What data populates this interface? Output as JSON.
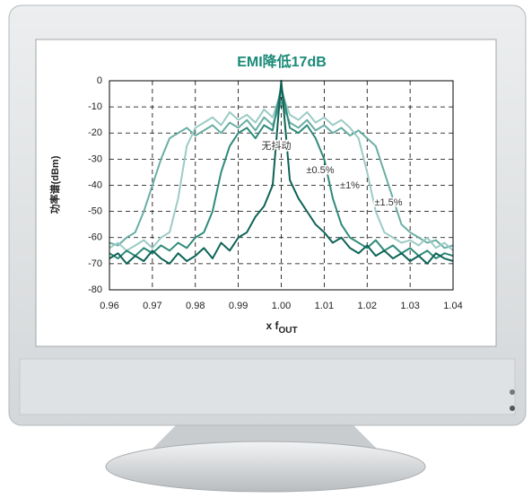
{
  "chart_data": {
    "type": "line",
    "title": "EMI降低17dB",
    "ylabel": "功率谱(dBm)",
    "xlabel": [
      "x f",
      "OUT"
    ],
    "xlim": [
      0.96,
      1.04
    ],
    "xticks": [
      0.96,
      0.97,
      0.98,
      0.99,
      {
        "value": 1,
        "label": "1.00"
      },
      1.01,
      1.02,
      1.03,
      1.04
    ],
    "ylim": [
      -80,
      0
    ],
    "yticks": [
      -80,
      -70,
      -60,
      -50,
      -40,
      -30,
      -20,
      -10,
      0
    ],
    "grid": true,
    "annotations": [
      "无抖动",
      "±0.5%",
      "±1%",
      "±1.5%"
    ],
    "x": [
      0.96,
      0.962,
      0.964,
      0.966,
      0.968,
      0.97,
      0.972,
      0.974,
      0.976,
      0.978,
      0.98,
      0.982,
      0.984,
      0.986,
      0.988,
      0.99,
      0.992,
      0.994,
      0.996,
      0.998,
      1,
      1.002,
      1.004,
      1.006,
      1.008,
      1.01,
      1.012,
      1.014,
      1.016,
      1.018,
      1.02,
      1.022,
      1.024,
      1.026,
      1.028,
      1.03,
      1.032,
      1.034,
      1.036,
      1.038,
      1.04
    ],
    "series": [
      {
        "color": "#6aaea4",
        "values": [
          -62,
          -63,
          -60,
          -58,
          -50,
          -40,
          -30,
          -22,
          -20,
          -18,
          -21,
          -19,
          -17,
          -20,
          -16,
          -18,
          -15,
          -19,
          -14,
          -17,
          -8,
          -16,
          -18,
          -15,
          -19,
          -17,
          -20,
          -18,
          -21,
          -19,
          -22,
          -25,
          -35,
          -45,
          -55,
          -58,
          -60,
          -62,
          -61,
          -64,
          -63
        ]
      },
      {
        "color": "#9ccbc4",
        "values": [
          -64,
          -62,
          -65,
          -63,
          -61,
          -64,
          -60,
          -58,
          -45,
          -25,
          -18,
          -16,
          -14,
          -17,
          -12,
          -15,
          -13,
          -16,
          -11,
          -14,
          -4,
          -13,
          -15,
          -12,
          -16,
          -14,
          -17,
          -15,
          -18,
          -22,
          -35,
          -50,
          -58,
          -60,
          -62,
          -61,
          -63,
          -60,
          -64,
          -62,
          -65
        ]
      },
      {
        "color": "#2e8b7a",
        "values": [
          -66,
          -68,
          -65,
          -67,
          -64,
          -66,
          -63,
          -65,
          -62,
          -64,
          -60,
          -58,
          -50,
          -35,
          -25,
          -20,
          -18,
          -22,
          -17,
          -19,
          -2,
          -18,
          -20,
          -17,
          -22,
          -30,
          -45,
          -55,
          -60,
          -62,
          -64,
          -61,
          -65,
          -63,
          -66,
          -64,
          -67,
          -65,
          -68,
          -66,
          -67
        ]
      },
      {
        "color": "#0d6356",
        "values": [
          -68,
          -66,
          -70,
          -67,
          -69,
          -65,
          -68,
          -70,
          -66,
          -69,
          -67,
          -64,
          -68,
          -62,
          -65,
          -60,
          -58,
          -52,
          -48,
          -40,
          0,
          -38,
          -45,
          -50,
          -55,
          -58,
          -62,
          -60,
          -64,
          -66,
          -63,
          -67,
          -65,
          -68,
          -66,
          -69,
          -67,
          -70,
          -66,
          -68,
          -69
        ]
      }
    ]
  }
}
